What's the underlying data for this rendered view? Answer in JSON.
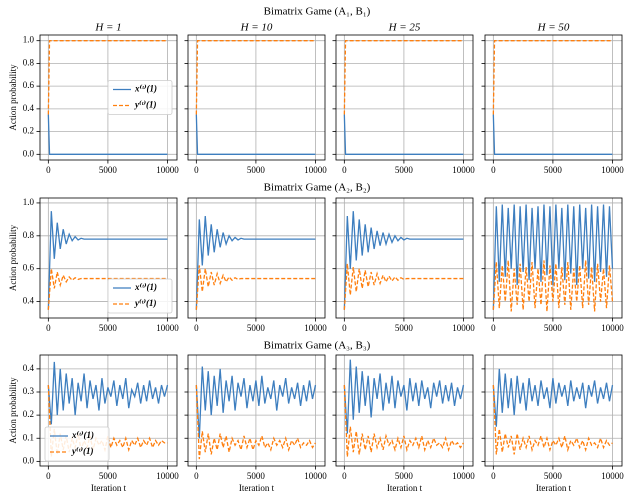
{
  "chart_data": [
    {
      "type": "line",
      "title": "Bimatrix Game (A₁, B₁)",
      "ylabel": "Action probability",
      "legend": "center right",
      "xlim": [
        -700,
        10800
      ],
      "xticks": [
        0,
        5000,
        10000
      ],
      "ylim": [
        -0.05,
        1.05
      ],
      "yticks": [
        {
          "value": 0,
          "label": "0.0"
        },
        0.2,
        0.4,
        0.6,
        0.8,
        {
          "value": 1,
          "label": "1.0"
        }
      ],
      "x": [
        0,
        100,
        10000
      ],
      "series": [
        {
          "name": "x⁽ᵗ⁾(1)",
          "color": "#3d7ebf",
          "linestyle": "solid"
        },
        {
          "name": "y⁽ᵗ⁾(1)",
          "color": "#ff7f0e",
          "linestyle": "dashed"
        }
      ],
      "panels": [
        {
          "title": "H = 1",
          "values": [
            [
              0.35,
              0,
              0
            ],
            [
              0.35,
              1,
              1
            ]
          ]
        },
        {
          "title": "H = 10",
          "values": [
            [
              0.35,
              0,
              0
            ],
            [
              0.35,
              1,
              1
            ]
          ]
        },
        {
          "title": "H = 25",
          "values": [
            [
              0.35,
              0,
              0
            ],
            [
              0.35,
              1,
              1
            ]
          ]
        },
        {
          "title": "H = 50",
          "values": [
            [
              0.35,
              0,
              0
            ],
            [
              0.35,
              1,
              1
            ]
          ]
        }
      ]
    },
    {
      "type": "line",
      "title": "Bimatrix Game (A₂, B₂)",
      "ylabel": "Action probability",
      "legend": "lower right",
      "xlim": [
        -700,
        10800
      ],
      "xticks": [
        0,
        5000,
        10000
      ],
      "ylim": [
        0.3,
        1.03
      ],
      "yticks": [
        0.4,
        0.6,
        0.8,
        {
          "value": 1,
          "label": "1.0"
        }
      ],
      "x": [
        0,
        250,
        500,
        750,
        1000,
        1250,
        1500,
        1750,
        2000,
        2250,
        2500,
        2750,
        3000,
        3250,
        3500,
        3750,
        4000,
        4250,
        4500,
        4750,
        5000,
        5250,
        5500,
        5750,
        6000,
        6250,
        6500,
        6750,
        7000,
        7250,
        7500,
        7750,
        8000,
        8250,
        8500,
        8750,
        9000,
        9250,
        9500,
        9750,
        10000
      ],
      "series": [
        {
          "name": "x⁽ᵗ⁾(1)",
          "color": "#3d7ebf",
          "linestyle": "solid"
        },
        {
          "name": "y⁽ᵗ⁾(1)",
          "color": "#ff7f0e",
          "linestyle": "dashed"
        }
      ],
      "panels": [
        {
          "values": [
            [
              0.35,
              0.95,
              0.66,
              0.88,
              0.72,
              0.84,
              0.75,
              0.81,
              0.77,
              0.795,
              0.775,
              0.785,
              0.78,
              0.78,
              0.78,
              0.78,
              0.78,
              0.78,
              0.78,
              0.78,
              0.78,
              0.78,
              0.78,
              0.78,
              0.78,
              0.78,
              0.78,
              0.78,
              0.78,
              0.78,
              0.78,
              0.78,
              0.78,
              0.78,
              0.78,
              0.78,
              0.78,
              0.78,
              0.78,
              0.78,
              0.78
            ],
            [
              0.35,
              0.6,
              0.48,
              0.58,
              0.5,
              0.56,
              0.52,
              0.55,
              0.53,
              0.545,
              0.535,
              0.54,
              0.54,
              0.54,
              0.54,
              0.54,
              0.54,
              0.54,
              0.54,
              0.54,
              0.54,
              0.54,
              0.54,
              0.54,
              0.54,
              0.54,
              0.54,
              0.54,
              0.54,
              0.54,
              0.54,
              0.54,
              0.54,
              0.54,
              0.54,
              0.54,
              0.54,
              0.54,
              0.54,
              0.54,
              0.54
            ]
          ]
        },
        {
          "values": [
            [
              0.35,
              0.9,
              0.62,
              0.92,
              0.68,
              0.87,
              0.7,
              0.84,
              0.73,
              0.82,
              0.75,
              0.8,
              0.77,
              0.79,
              0.775,
              0.785,
              0.78,
              0.78,
              0.78,
              0.78,
              0.78,
              0.78,
              0.78,
              0.78,
              0.78,
              0.78,
              0.78,
              0.78,
              0.78,
              0.78,
              0.78,
              0.78,
              0.78,
              0.78,
              0.78,
              0.78,
              0.78,
              0.78,
              0.78,
              0.78,
              0.78
            ],
            [
              0.35,
              0.62,
              0.46,
              0.6,
              0.49,
              0.58,
              0.5,
              0.57,
              0.51,
              0.56,
              0.52,
              0.55,
              0.53,
              0.545,
              0.535,
              0.54,
              0.54,
              0.54,
              0.54,
              0.54,
              0.54,
              0.54,
              0.54,
              0.54,
              0.54,
              0.54,
              0.54,
              0.54,
              0.54,
              0.54,
              0.54,
              0.54,
              0.54,
              0.54,
              0.54,
              0.54,
              0.54,
              0.54,
              0.54,
              0.54,
              0.54
            ]
          ]
        },
        {
          "values": [
            [
              0.35,
              0.92,
              0.6,
              0.95,
              0.65,
              0.9,
              0.68,
              0.87,
              0.7,
              0.85,
              0.72,
              0.83,
              0.74,
              0.82,
              0.75,
              0.81,
              0.76,
              0.8,
              0.77,
              0.79,
              0.775,
              0.785,
              0.78,
              0.78,
              0.78,
              0.78,
              0.78,
              0.78,
              0.78,
              0.78,
              0.78,
              0.78,
              0.78,
              0.78,
              0.78,
              0.78,
              0.78,
              0.78,
              0.78,
              0.78,
              0.78
            ],
            [
              0.35,
              0.63,
              0.44,
              0.61,
              0.46,
              0.6,
              0.48,
              0.59,
              0.49,
              0.58,
              0.5,
              0.57,
              0.51,
              0.56,
              0.52,
              0.555,
              0.525,
              0.55,
              0.53,
              0.545,
              0.535,
              0.54,
              0.54,
              0.54,
              0.54,
              0.54,
              0.54,
              0.54,
              0.54,
              0.54,
              0.54,
              0.54,
              0.54,
              0.54,
              0.54,
              0.54,
              0.54,
              0.54,
              0.54,
              0.54,
              0.54
            ]
          ]
        },
        {
          "values": [
            [
              0.35,
              0.98,
              0.52,
              0.99,
              0.55,
              0.97,
              0.6,
              0.99,
              0.5,
              0.98,
              0.58,
              0.99,
              0.53,
              0.97,
              0.6,
              0.98,
              0.52,
              0.99,
              0.56,
              0.98,
              0.5,
              0.99,
              0.6,
              0.97,
              0.53,
              0.99,
              0.57,
              0.98,
              0.5,
              0.99,
              0.6,
              0.97,
              0.54,
              0.99,
              0.52,
              0.98,
              0.58,
              0.99,
              0.55,
              0.98,
              0.6
            ],
            [
              0.35,
              0.64,
              0.36,
              0.62,
              0.4,
              0.65,
              0.34,
              0.6,
              0.38,
              0.63,
              0.35,
              0.61,
              0.4,
              0.64,
              0.36,
              0.6,
              0.38,
              0.65,
              0.34,
              0.62,
              0.4,
              0.63,
              0.36,
              0.61,
              0.38,
              0.64,
              0.35,
              0.6,
              0.4,
              0.62,
              0.36,
              0.65,
              0.38,
              0.61,
              0.34,
              0.63,
              0.4,
              0.6,
              0.36,
              0.62,
              0.4
            ]
          ]
        }
      ]
    },
    {
      "type": "line",
      "title": "Bimatrix Game (A₃, B₃)",
      "ylabel": "Action probability",
      "xlabel": "Iteration t",
      "legend": "lower left",
      "xlim": [
        -700,
        10800
      ],
      "xticks": [
        0,
        5000,
        10000
      ],
      "ylim": [
        -0.02,
        0.46
      ],
      "yticks": [
        {
          "value": 0,
          "label": "0.0"
        },
        0.1,
        0.2,
        0.3,
        0.4
      ],
      "x": [
        0,
        250,
        500,
        750,
        1000,
        1250,
        1500,
        1750,
        2000,
        2250,
        2500,
        2750,
        3000,
        3250,
        3500,
        3750,
        4000,
        4250,
        4500,
        4750,
        5000,
        5250,
        5500,
        5750,
        6000,
        6250,
        6500,
        6750,
        7000,
        7250,
        7500,
        7750,
        8000,
        8250,
        8500,
        8750,
        9000,
        9250,
        9500,
        9750,
        10000
      ],
      "series": [
        {
          "name": "x⁽ᵗ⁾(1)",
          "color": "#3d7ebf",
          "linestyle": "solid"
        },
        {
          "name": "y⁽ᵗ⁾(1)",
          "color": "#ff7f0e",
          "linestyle": "dashed"
        }
      ],
      "panels": [
        {
          "values": [
            [
              0.33,
              0.16,
              0.43,
              0.2,
              0.4,
              0.22,
              0.38,
              0.25,
              0.36,
              0.2,
              0.34,
              0.26,
              0.38,
              0.23,
              0.35,
              0.27,
              0.33,
              0.22,
              0.36,
              0.25,
              0.32,
              0.28,
              0.35,
              0.24,
              0.33,
              0.27,
              0.36,
              0.23,
              0.31,
              0.28,
              0.34,
              0.25,
              0.33,
              0.26,
              0.35,
              0.27,
              0.32,
              0.25,
              0.33,
              0.28,
              0.33
            ],
            [
              0.33,
              0.02,
              0.14,
              0.03,
              0.12,
              0.05,
              0.11,
              0.04,
              0.1,
              0.06,
              0.12,
              0.05,
              0.09,
              0.06,
              0.11,
              0.05,
              0.1,
              0.07,
              0.09,
              0.05,
              0.11,
              0.06,
              0.1,
              0.07,
              0.09,
              0.06,
              0.1,
              0.05,
              0.09,
              0.07,
              0.1,
              0.06,
              0.09,
              0.07,
              0.1,
              0.06,
              0.09,
              0.07,
              0.09,
              0.08,
              0.08
            ]
          ]
        },
        {
          "values": [
            [
              0.33,
              0.1,
              0.41,
              0.22,
              0.39,
              0.2,
              0.37,
              0.24,
              0.4,
              0.21,
              0.35,
              0.26,
              0.37,
              0.22,
              0.34,
              0.28,
              0.36,
              0.23,
              0.33,
              0.26,
              0.35,
              0.24,
              0.37,
              0.25,
              0.32,
              0.27,
              0.35,
              0.22,
              0.33,
              0.28,
              0.36,
              0.25,
              0.32,
              0.27,
              0.34,
              0.24,
              0.33,
              0.26,
              0.35,
              0.27,
              0.33
            ],
            [
              0.33,
              0.01,
              0.13,
              0.04,
              0.12,
              0.03,
              0.1,
              0.05,
              0.12,
              0.06,
              0.11,
              0.04,
              0.1,
              0.07,
              0.09,
              0.05,
              0.11,
              0.06,
              0.1,
              0.05,
              0.09,
              0.07,
              0.11,
              0.06,
              0.08,
              0.05,
              0.1,
              0.07,
              0.09,
              0.06,
              0.1,
              0.05,
              0.09,
              0.07,
              0.1,
              0.06,
              0.08,
              0.07,
              0.09,
              0.06,
              0.08
            ]
          ]
        },
        {
          "values": [
            [
              0.33,
              0.12,
              0.44,
              0.18,
              0.41,
              0.21,
              0.39,
              0.24,
              0.37,
              0.19,
              0.36,
              0.27,
              0.38,
              0.22,
              0.34,
              0.25,
              0.37,
              0.23,
              0.35,
              0.28,
              0.33,
              0.22,
              0.36,
              0.26,
              0.34,
              0.24,
              0.35,
              0.27,
              0.32,
              0.23,
              0.34,
              0.28,
              0.35,
              0.25,
              0.33,
              0.26,
              0.34,
              0.24,
              0.32,
              0.27,
              0.33
            ],
            [
              0.33,
              0.02,
              0.15,
              0.04,
              0.13,
              0.03,
              0.12,
              0.05,
              0.11,
              0.04,
              0.12,
              0.06,
              0.1,
              0.05,
              0.11,
              0.07,
              0.09,
              0.05,
              0.1,
              0.06,
              0.11,
              0.05,
              0.09,
              0.07,
              0.1,
              0.06,
              0.11,
              0.05,
              0.09,
              0.06,
              0.1,
              0.07,
              0.08,
              0.06,
              0.1,
              0.05,
              0.09,
              0.07,
              0.08,
              0.06,
              0.08
            ]
          ]
        },
        {
          "values": [
            [
              0.33,
              0.15,
              0.4,
              0.21,
              0.38,
              0.23,
              0.36,
              0.2,
              0.37,
              0.25,
              0.34,
              0.22,
              0.36,
              0.26,
              0.33,
              0.24,
              0.35,
              0.27,
              0.32,
              0.23,
              0.36,
              0.25,
              0.34,
              0.28,
              0.33,
              0.24,
              0.35,
              0.26,
              0.32,
              0.27,
              0.34,
              0.23,
              0.33,
              0.28,
              0.35,
              0.25,
              0.32,
              0.27,
              0.34,
              0.26,
              0.33
            ],
            [
              0.33,
              0.03,
              0.14,
              0.04,
              0.12,
              0.06,
              0.11,
              0.03,
              0.12,
              0.05,
              0.1,
              0.06,
              0.11,
              0.05,
              0.09,
              0.07,
              0.11,
              0.06,
              0.1,
              0.05,
              0.09,
              0.07,
              0.1,
              0.06,
              0.11,
              0.05,
              0.09,
              0.07,
              0.1,
              0.06,
              0.09,
              0.05,
              0.1,
              0.07,
              0.08,
              0.06,
              0.1,
              0.06,
              0.09,
              0.07,
              0.08
            ]
          ]
        }
      ]
    }
  ]
}
